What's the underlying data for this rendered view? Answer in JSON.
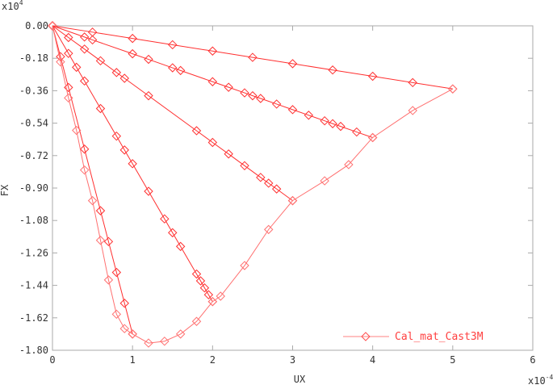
{
  "chart_data": {
    "type": "line",
    "title": "",
    "xlabel": "UX",
    "ylabel": "FX",
    "x_multiplier": "x10",
    "x_multiplier_exp": "-4",
    "y_multiplier": "x10",
    "y_multiplier_exp": "4",
    "xlim": [
      0,
      6
    ],
    "ylim": [
      -1.8,
      0
    ],
    "x_ticks": [
      "0",
      "1",
      "2",
      "3",
      "4",
      "5",
      "6"
    ],
    "y_ticks": [
      "0.00",
      "-0.18",
      "-0.36",
      "-0.54",
      "-0.72",
      "-0.90",
      "-1.08",
      "-1.26",
      "-1.44",
      "-1.62",
      "-1.80"
    ],
    "grid": false,
    "legend_position": "bottom-right",
    "colors": {
      "line": "#ff3030",
      "line_light": "#ff7070",
      "axis": "#aaaaaa"
    },
    "series": [
      {
        "name": "Cal_mat_Cast3M",
        "marker": "diamond",
        "segments": [
          [
            [
              0,
              0
            ],
            [
              0.5,
              -0.035
            ],
            [
              1,
              -0.07
            ],
            [
              1.5,
              -0.105
            ],
            [
              2,
              -0.14
            ],
            [
              2.5,
              -0.175
            ],
            [
              3,
              -0.21
            ],
            [
              3.5,
              -0.245
            ],
            [
              4,
              -0.28
            ],
            [
              4.5,
              -0.315
            ],
            [
              5,
              -0.35
            ]
          ],
          [
            [
              0,
              0
            ],
            [
              0.4,
              -0.062
            ],
            [
              0.5,
              -0.078
            ],
            [
              1,
              -0.155
            ],
            [
              1.2,
              -0.186
            ],
            [
              1.5,
              -0.233
            ],
            [
              1.6,
              -0.248
            ],
            [
              2,
              -0.31
            ],
            [
              2.2,
              -0.341
            ],
            [
              2.4,
              -0.372
            ],
            [
              2.5,
              -0.388
            ],
            [
              2.6,
              -0.403
            ],
            [
              2.8,
              -0.434
            ],
            [
              3,
              -0.465
            ],
            [
              3.2,
              -0.496
            ],
            [
              3.4,
              -0.527
            ],
            [
              3.5,
              -0.543
            ],
            [
              3.6,
              -0.558
            ],
            [
              3.8,
              -0.589
            ],
            [
              4,
              -0.62
            ]
          ],
          [
            [
              0,
              0
            ],
            [
              0.2,
              -0.065
            ],
            [
              0.4,
              -0.129
            ],
            [
              0.6,
              -0.194
            ],
            [
              0.8,
              -0.259
            ],
            [
              0.9,
              -0.291
            ],
            [
              1.2,
              -0.388
            ],
            [
              1.8,
              -0.582
            ],
            [
              2,
              -0.647
            ],
            [
              2.2,
              -0.711
            ],
            [
              2.4,
              -0.776
            ],
            [
              2.6,
              -0.841
            ],
            [
              2.7,
              -0.873
            ],
            [
              2.8,
              -0.905
            ],
            [
              3,
              -0.97
            ]
          ],
          [
            [
              0,
              0
            ],
            [
              0.2,
              -0.153
            ],
            [
              0.3,
              -0.23
            ],
            [
              0.4,
              -0.306
            ],
            [
              0.6,
              -0.459
            ],
            [
              0.8,
              -0.612
            ],
            [
              0.9,
              -0.689
            ],
            [
              1,
              -0.765
            ],
            [
              1.2,
              -0.918
            ],
            [
              1.4,
              -1.071
            ],
            [
              1.5,
              -1.148
            ],
            [
              1.6,
              -1.224
            ],
            [
              1.8,
              -1.377
            ],
            [
              1.85,
              -1.415
            ],
            [
              1.9,
              -1.454
            ],
            [
              1.95,
              -1.492
            ],
            [
              2,
              -1.53
            ]
          ],
          [
            [
              0,
              0
            ],
            [
              0.1,
              -0.171
            ],
            [
              0.2,
              -0.342
            ],
            [
              0.4,
              -0.684
            ],
            [
              0.6,
              -1.026
            ],
            [
              0.7,
              -1.197
            ],
            [
              0.8,
              -1.368
            ],
            [
              0.9,
              -1.539
            ],
            [
              1,
              -1.71
            ]
          ],
          [
            [
              0,
              0
            ],
            [
              0.1,
              -0.2
            ],
            [
              0.2,
              -0.4
            ],
            [
              0.3,
              -0.58
            ],
            [
              0.4,
              -0.8
            ],
            [
              0.5,
              -0.97
            ],
            [
              0.6,
              -1.19
            ],
            [
              0.7,
              -1.41
            ],
            [
              0.8,
              -1.6
            ],
            [
              0.9,
              -1.68
            ],
            [
              1,
              -1.71
            ],
            [
              1.2,
              -1.76
            ],
            [
              1.4,
              -1.75
            ],
            [
              1.6,
              -1.71
            ],
            [
              1.8,
              -1.64
            ],
            [
              2,
              -1.53
            ],
            [
              2.1,
              -1.5
            ],
            [
              2.4,
              -1.33
            ],
            [
              2.7,
              -1.13
            ],
            [
              3,
              -0.97
            ],
            [
              3.4,
              -0.86
            ],
            [
              3.7,
              -0.77
            ],
            [
              4,
              -0.62
            ],
            [
              4.5,
              -0.47
            ],
            [
              5,
              -0.35
            ]
          ]
        ]
      }
    ]
  }
}
